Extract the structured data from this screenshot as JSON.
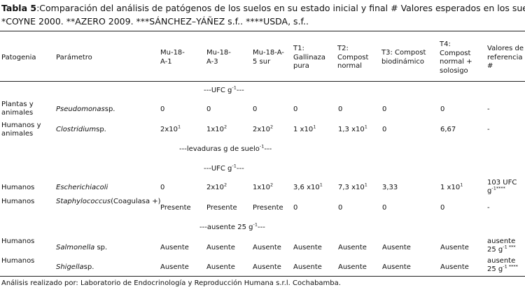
{
  "title": {
    "label": "Tabla 5",
    "line1": ":Comparación del análisis de patógenos de los suelos en su estado inicial y final # Valores esperados en los suelos",
    "line2": "*COYNE 2000. **AZERO 2009. ***SÁNCHEZ–YÁÑEZ s.f.. ****USDA, s.f.."
  },
  "headers": {
    "patogenia": "Patogenia",
    "parametro": "Parámetro",
    "mu1": "Mu-18-A-1",
    "mu3": "Mu-18-A-3",
    "mu5": "Mu-18-A-5 sur",
    "t1": "T1: Gallinaza pura",
    "t2": "T2: Compost normal",
    "t3": "T3: Compost biodinámico",
    "t4": "T4: Compost normal + solosigo",
    "ref": "Valores de referencia #"
  },
  "sections": {
    "ufc1": "---UFC g",
    "ufc1_sup": "-1",
    "ufc1_end": "---",
    "lev": "---levaduras g de suelo",
    "lev_sup": "-1",
    "lev_end": "---",
    "ufc2": "---UFC g",
    "ufc2_sup": "-1",
    "ufc2_end": "---",
    "aus": "---ausente 25 g",
    "aus_sup": "-1",
    "aus_end": "---"
  },
  "rows": {
    "pseudo": {
      "patogenia": "Plantas y animales",
      "param": "Pseudomonas",
      "param_suffix": "sp.",
      "mu1": "0",
      "mu3": "0",
      "mu5": "0",
      "t1": "0",
      "t2": "0",
      "t3": "0",
      "t4": "0",
      "ref": "-"
    },
    "clostri": {
      "patogenia": "Humanos y animales",
      "param": "Clostridium",
      "param_suffix": "sp.",
      "mu1": "2x10",
      "mu1_sup": "1",
      "mu3": "1x10",
      "mu3_sup": "2",
      "mu5": "2x10",
      "mu5_sup": "2",
      "t1": "1 x10",
      "t1_sup": "1",
      "t2": "1,3 x10",
      "t2_sup": "1",
      "t3": "0",
      "t4": "6,67",
      "ref": "-"
    },
    "ecoli": {
      "patogenia": "Humanos",
      "param": "Escherichiacoli",
      "mu1": "0",
      "mu3": "2x10",
      "mu3_sup": "2",
      "mu5": "1x10",
      "mu5_sup": "2",
      "t1": "3,6 x10",
      "t1_sup": "1",
      "t2": "7,3 x10",
      "t2_sup": "1",
      "t3": "3,33",
      "t4": "1 x10",
      "t4_sup": "1",
      "ref": "103  UFC g",
      "ref_sup": "-1****"
    },
    "staph": {
      "patogenia": "Humanos",
      "param": "Staphylococcus",
      "param_suffix": "(Coagulasa +)",
      "mu1": "Presente",
      "mu3": "Presente",
      "mu5": "Presente",
      "t1": "0",
      "t2": "0",
      "t3": "0",
      "t4": "0",
      "ref": "-"
    },
    "salmo": {
      "patogenia": "Humanos",
      "param": "Salmonella",
      "param_suffix": " sp.",
      "mu1": "Ausente",
      "mu3": "Ausente",
      "mu5": "Ausente",
      "t1": "Ausente",
      "t2": "Ausente",
      "t3": "Ausente",
      "t4": "Ausente",
      "ref": "ausente 25 g",
      "ref_sup": "-1 ***"
    },
    "shig": {
      "patogenia": "Humanos",
      "param": "Shigella",
      "param_suffix": "sp.",
      "mu1": "Ausente",
      "mu3": "Ausente",
      "mu5": "Ausente",
      "t1": "Ausente",
      "t2": "Ausente",
      "t3": "Ausente",
      "t4": "Ausente",
      "ref": "ausente 25 g",
      "ref_sup": "-1 ****"
    }
  },
  "footer": "Análisis realizado por: Laboratorio de Endocrinología y Reproducción Humana s.r.l. Cochabamba."
}
